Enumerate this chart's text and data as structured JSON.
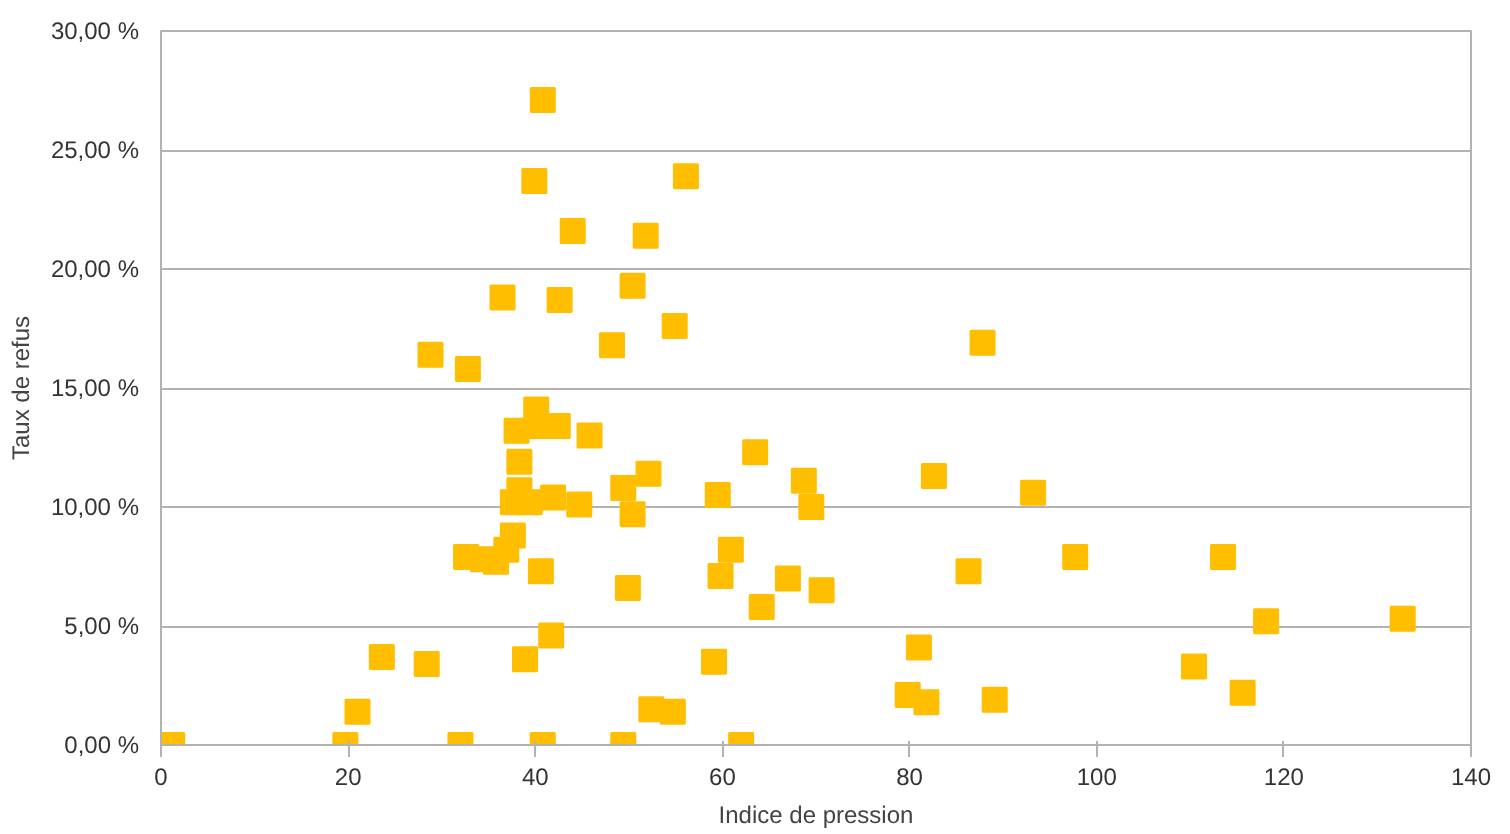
{
  "chart_data": {
    "type": "scatter",
    "xlabel": "Indice de pression",
    "ylabel": "Taux de refus",
    "marker": "square",
    "grid": "y",
    "xlim": [
      0,
      140
    ],
    "xticks": [
      0,
      20,
      40,
      60,
      80,
      100,
      120,
      140
    ],
    "ylim": [
      0,
      30
    ],
    "yticks": [
      {
        "value": 0,
        "label": "0,00 %"
      },
      {
        "value": 5,
        "label": "5,00 %"
      },
      {
        "value": 10,
        "label": "10,00 %"
      },
      {
        "value": 15,
        "label": "15,00 %"
      },
      {
        "value": 20,
        "label": "20,00 %"
      },
      {
        "value": 25,
        "label": "25,00 %"
      },
      {
        "value": 30,
        "label": "30,00 %"
      }
    ],
    "series": [
      {
        "color": "#ffbf00",
        "x": [
          1.2,
          19.7,
          21,
          23.6,
          28.4,
          28.8,
          32.8,
          32,
          32.6,
          34.4,
          35.8,
          36.5,
          36.9,
          37.6,
          37.6,
          38.3,
          38.3,
          38,
          38.9,
          39.4,
          39.9,
          40.1,
          40.3,
          40.8,
          40.6,
          40.8,
          41.7,
          41.9,
          42.6,
          42.4,
          44,
          44.7,
          45.8,
          48.2,
          49.4,
          49.9,
          56.1,
          51.8,
          50.4,
          54.9,
          87.8,
          63.5,
          52.1,
          82.6,
          49.4,
          59.5,
          68.7,
          69.5,
          93.2,
          50.4,
          60.9,
          59.8,
          67,
          70.6,
          64.2,
          86.3,
          97.7,
          113.5,
          118.1,
          132.7,
          81,
          59.1,
          110.4,
          115.6,
          79.8,
          81.8,
          89.1,
          52.4,
          54.7,
          62
        ],
        "values": [
          0,
          0,
          1.4,
          3.7,
          3.4,
          16.4,
          15.8,
          0,
          7.9,
          7.8,
          7.7,
          18.8,
          8.2,
          8.8,
          10.2,
          10.7,
          11.9,
          13.2,
          3.6,
          10.2,
          23.7,
          14.1,
          13.4,
          27.1,
          7.3,
          0,
          4.6,
          10.4,
          18.7,
          13.4,
          21.6,
          10.1,
          13,
          16.8,
          0,
          6.6,
          23.9,
          21.4,
          19.3,
          17.6,
          16.9,
          12.3,
          11.4,
          11.3,
          10.8,
          10.5,
          11.1,
          10,
          10.6,
          9.7,
          8.2,
          7.1,
          7,
          6.5,
          5.8,
          7.3,
          7.9,
          7.9,
          5.2,
          5.3,
          4.1,
          3.5,
          3.3,
          2.2,
          2.1,
          1.8,
          1.9,
          1.5,
          1.4,
          0
        ]
      }
    ]
  }
}
